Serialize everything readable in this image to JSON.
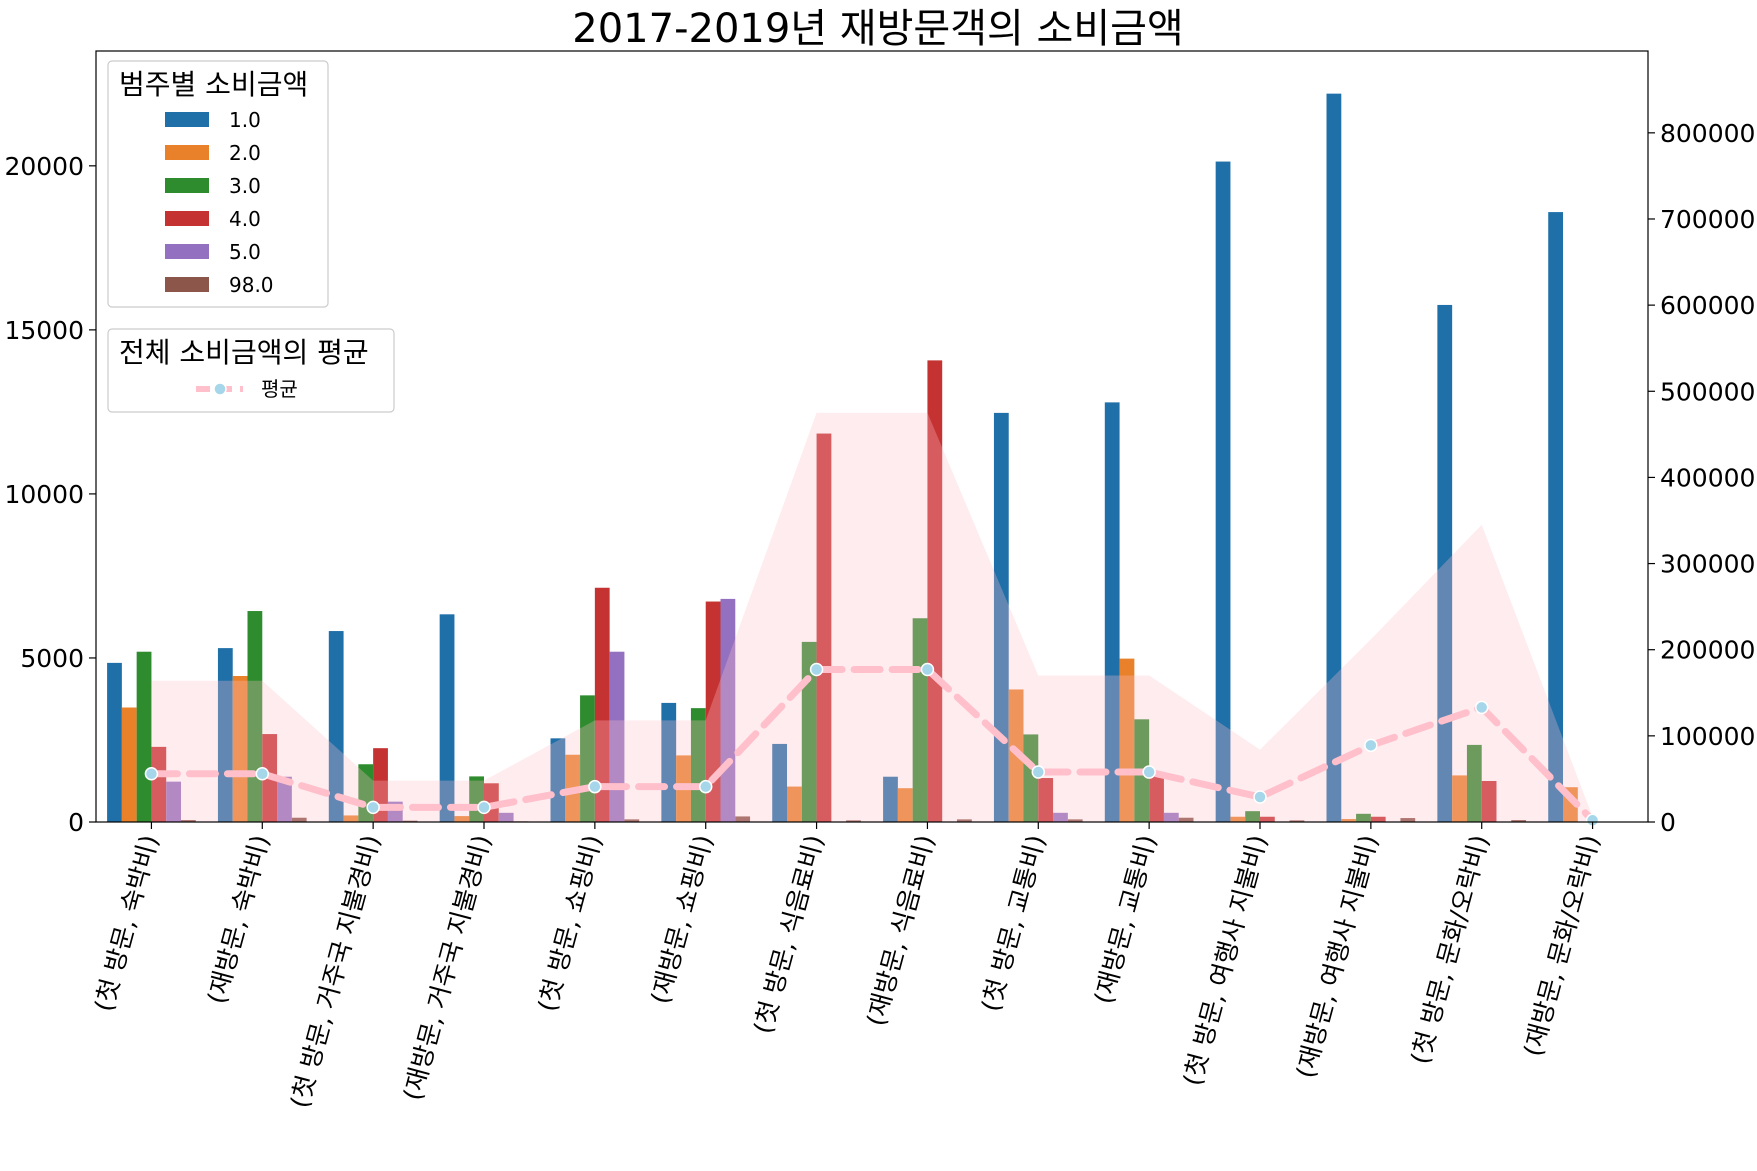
{
  "chart_data": {
    "type": "bar",
    "title": "2017-2019년 재방문객의 소비금액",
    "xlabel": "",
    "ylabel": "",
    "categories": [
      "(첫 방문, 숙박비)",
      "(재방문, 숙박비)",
      "(첫 방문, 거주국 지불경비)",
      "(재방문, 거주국 지불경비)",
      "(첫 방문, 쇼핑비)",
      "(재방문, 쇼핑비)",
      "(첫 방문, 식음료비)",
      "(재방문, 식음료비)",
      "(첫 방문, 교통비)",
      "(재방문, 교통비)",
      "(첫 방문, 여행사 지불비)",
      "(재방문, 여행사 지불비)",
      "(첫 방문, 문화/오락비)",
      "(재방문, 문화/오락비)"
    ],
    "ylim": [
      0,
      23500
    ],
    "yticks": [
      0,
      5000,
      10000,
      15000,
      20000
    ],
    "y2lim": [
      0,
      895000
    ],
    "y2ticks": [
      0,
      100000,
      200000,
      300000,
      400000,
      500000,
      600000,
      700000,
      800000
    ],
    "series": [
      {
        "name": "1.0",
        "color": "#1f6fa8",
        "values": [
          4850,
          5300,
          5820,
          6330,
          2550,
          3630,
          2380,
          1380,
          12470,
          12790,
          20130,
          22200,
          15760,
          18590
        ]
      },
      {
        "name": "2.0",
        "color": "#e8812a",
        "values": [
          3490,
          4450,
          200,
          180,
          2050,
          2030,
          1080,
          1030,
          4040,
          4980,
          160,
          90,
          1420,
          1060
        ]
      },
      {
        "name": "3.0",
        "color": "#2e8b2e",
        "values": [
          5190,
          6430,
          1760,
          1390,
          3860,
          3470,
          5490,
          6210,
          2670,
          3130,
          330,
          250,
          2350,
          0
        ]
      },
      {
        "name": "4.0",
        "color": "#c43232",
        "values": [
          2290,
          2680,
          2250,
          1180,
          7140,
          6720,
          11840,
          14070,
          1340,
          1480,
          160,
          160,
          1250,
          0
        ]
      },
      {
        "name": "5.0",
        "color": "#9371c0",
        "values": [
          1230,
          1380,
          620,
          280,
          5190,
          6800,
          0,
          0,
          280,
          280,
          0,
          0,
          0,
          0
        ]
      },
      {
        "name": "98.0",
        "color": "#8c564b",
        "values": [
          60,
          130,
          40,
          20,
          80,
          170,
          50,
          80,
          80,
          130,
          50,
          120,
          60,
          0
        ]
      }
    ],
    "mean_line": {
      "name": "평균",
      "line_color": "#ffc0cb",
      "marker_color": "#a6d6ea",
      "values": [
        56000,
        56000,
        17000,
        17000,
        41000,
        41000,
        177000,
        177000,
        58000,
        58000,
        29000,
        89000,
        133000,
        2000
      ],
      "band_upper": [
        164000,
        164000,
        48000,
        48000,
        118000,
        118000,
        475000,
        475000,
        170000,
        170000,
        84000,
        212000,
        345000,
        6000
      ]
    },
    "legend_bars": {
      "title": "범주별 소비금액",
      "placement": "top-left"
    },
    "legend_line": {
      "title": "전체 소비금액의 평균",
      "placement": "upper-left"
    }
  }
}
